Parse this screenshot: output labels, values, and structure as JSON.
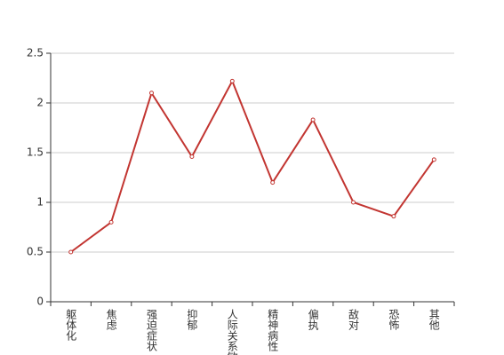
{
  "chart_data": {
    "type": "line",
    "categories": [
      "躯体化",
      "焦虑",
      "强迫症状",
      "抑郁",
      "人际关系敏感",
      "精神病性",
      "偏执",
      "敌对",
      "恐怖",
      "其他"
    ],
    "values": [
      0.5,
      0.8,
      2.1,
      1.46,
      2.22,
      1.2,
      1.83,
      1.0,
      0.86,
      1.43
    ],
    "color": "#c23531",
    "ylim": [
      0,
      2.5
    ],
    "yticks": [
      0,
      0.5,
      1,
      1.5,
      2,
      2.5
    ],
    "grid": true
  }
}
